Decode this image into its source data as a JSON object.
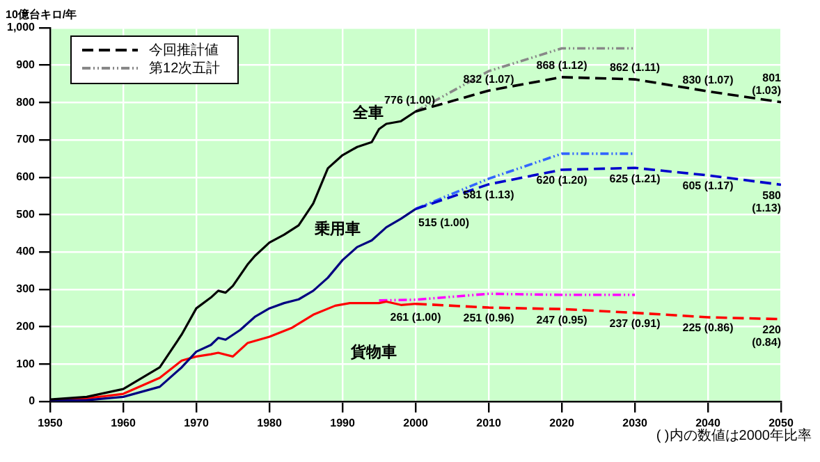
{
  "chart_data": {
    "type": "line",
    "ylabel": "10億台キロ/年",
    "annotations": [
      "( )内の数値は2000年比率"
    ],
    "xlim": [
      1950,
      2050
    ],
    "xticks": [
      1950,
      1960,
      1970,
      1980,
      1990,
      2000,
      2010,
      2020,
      2030,
      2040,
      2050
    ],
    "ylim": [
      0,
      1000
    ],
    "yticks": [
      0,
      100,
      200,
      300,
      400,
      500,
      600,
      700,
      800,
      900,
      {
        "value": 1000,
        "label": "1,000"
      }
    ],
    "grid": true,
    "legend": "top left",
    "marker": "none",
    "series": [
      {
        "name": "全車",
        "color": "#000000",
        "line_style": "solid",
        "x": [
          1950,
          1955,
          1960,
          1965,
          1968,
          1970,
          1972,
          1973,
          1974,
          1975,
          1977,
          1978,
          1980,
          1982,
          1984,
          1986,
          1988,
          1990,
          1992,
          1994,
          1995,
          1996,
          1998,
          2000
        ],
        "values": [
          5,
          12,
          33,
          91,
          179,
          249,
          278,
          296,
          291,
          309,
          366,
          389,
          425,
          446,
          471,
          530,
          624,
          659,
          681,
          694,
          729,
          743,
          750,
          776
        ]
      },
      {
        "name": "乗用車",
        "color": "#000080",
        "line_style": "solid",
        "x": [
          1950,
          1955,
          1960,
          1965,
          1968,
          1970,
          1972,
          1973,
          1974,
          1976,
          1978,
          1980,
          1982,
          1984,
          1986,
          1988,
          1990,
          1992,
          1994,
          1996,
          1998,
          2000
        ],
        "values": [
          1,
          3,
          12,
          39,
          91,
          133,
          151,
          170,
          165,
          191,
          226,
          249,
          263,
          273,
          296,
          331,
          378,
          413,
          431,
          466,
          489,
          515
        ]
      },
      {
        "name": "貨物車",
        "color": "#ff0000",
        "line_style": "solid",
        "x": [
          1950,
          1955,
          1960,
          1965,
          1968,
          1970,
          1972,
          1973,
          1975,
          1977,
          1980,
          1983,
          1986,
          1989,
          1991,
          1995,
          1996,
          1998,
          2000
        ],
        "values": [
          3,
          8,
          20,
          63,
          109,
          120,
          126,
          130,
          120,
          156,
          173,
          196,
          232,
          256,
          263,
          263,
          267,
          258,
          261
        ]
      },
      {
        "name": "今回推計値",
        "color": "#000000",
        "line_style": "dashed",
        "x": [
          2000,
          2010,
          2020,
          2030,
          2040,
          2050
        ],
        "values": [
          776,
          832,
          868,
          862,
          830,
          801
        ],
        "value_labels": [
          "776 (1.00)",
          "832 (1.07)",
          "868 (1.12)",
          "862 (1.11)",
          "830 (1.07)",
          "801 (1.03)"
        ]
      },
      {
        "color": "#0000cc",
        "line_style": "dashed",
        "x": [
          2000,
          2010,
          2020,
          2030,
          2040,
          2050
        ],
        "values": [
          515,
          581,
          620,
          625,
          605,
          580
        ],
        "value_labels": [
          "515 (1.00)",
          "581 (1.13)",
          "620 (1.20)",
          "625 (1.21)",
          "605 (1.17)",
          "580 (1.13)"
        ]
      },
      {
        "color": "#ff0000",
        "line_style": "dashed",
        "x": [
          2000,
          2010,
          2020,
          2030,
          2040,
          2050
        ],
        "values": [
          261,
          251,
          247,
          237,
          225,
          220
        ],
        "value_labels": [
          "261 (1.00)",
          "251 (0.96)",
          "247 (0.95)",
          "237 (0.91)",
          "225 (0.86)",
          "220 (0.84)"
        ]
      },
      {
        "name": "第12次五計",
        "color": "#888888",
        "line_style": "dotted",
        "x": [
          2000,
          2010,
          2020,
          2030
        ],
        "values": [
          776,
          884,
          945,
          945
        ]
      },
      {
        "color": "#3366ff",
        "line_style": "dotted",
        "x": [
          2000,
          2010,
          2020,
          2030
        ],
        "values": [
          515,
          596,
          663,
          663
        ]
      },
      {
        "color": "#ff00ff",
        "line_style": "dotted",
        "x": [
          1995,
          2000,
          2010,
          2020,
          2030
        ],
        "values": [
          270,
          272,
          288,
          285,
          285
        ]
      }
    ]
  }
}
